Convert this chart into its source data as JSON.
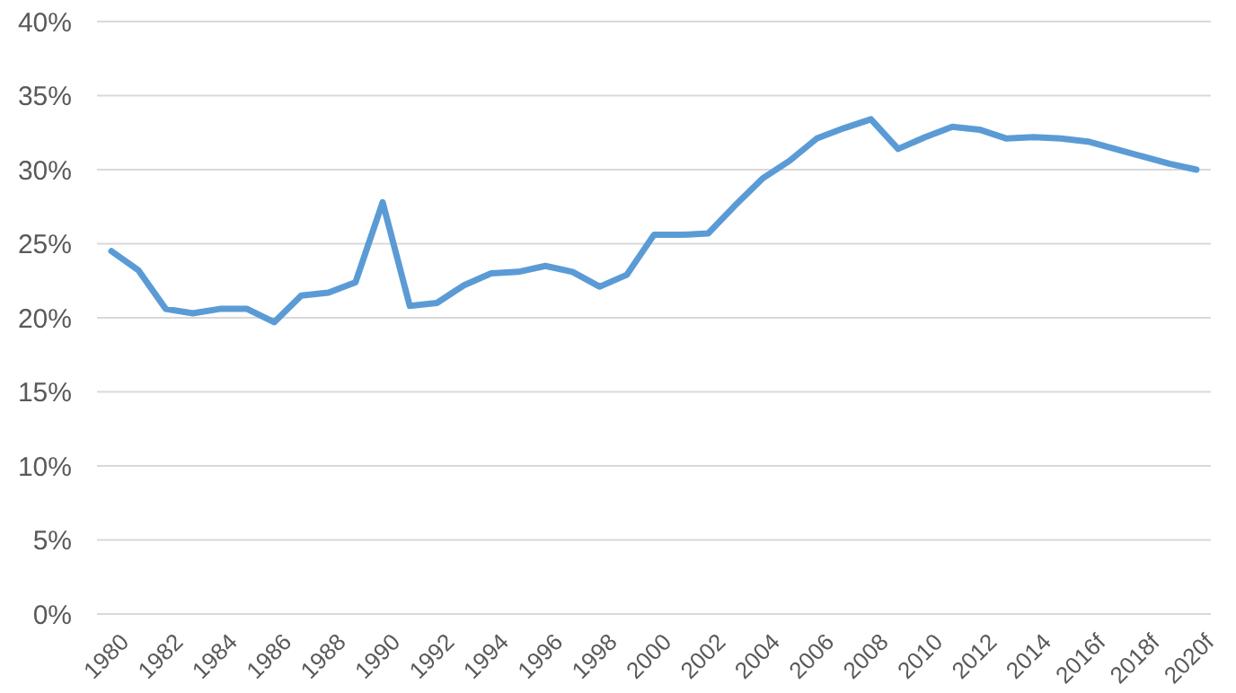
{
  "chart_data": {
    "type": "line",
    "categories": [
      "1980",
      null,
      "1982",
      null,
      "1984",
      null,
      "1986",
      null,
      "1988",
      null,
      "1990",
      null,
      "1992",
      null,
      "1994",
      null,
      "1996",
      null,
      "1998",
      null,
      "2000",
      null,
      "2002",
      null,
      "2004",
      null,
      "2006",
      null,
      "2008",
      null,
      "2010",
      null,
      "2012",
      null,
      "2014",
      null,
      "2016f",
      null,
      "2018f",
      null,
      "2020f"
    ],
    "series": [
      {
        "color": "#5b9bd5",
        "values": [
          24.5,
          23.2,
          20.6,
          20.3,
          20.6,
          20.6,
          19.7,
          21.5,
          21.7,
          22.4,
          27.8,
          20.8,
          21.0,
          22.2,
          23.0,
          23.1,
          23.5,
          23.1,
          22.1,
          22.9,
          25.6,
          25.6,
          25.7,
          27.6,
          29.4,
          30.6,
          32.1,
          32.8,
          33.4,
          31.4,
          32.2,
          32.9,
          32.7,
          32.1,
          32.2,
          32.1,
          31.9,
          31.4,
          30.9,
          30.4,
          30.0
        ]
      }
    ],
    "ylim": [
      0,
      40
    ],
    "yticks": [
      {
        "value": 0,
        "label": "0%"
      },
      {
        "value": 5,
        "label": "5%"
      },
      {
        "value": 10,
        "label": "10%"
      },
      {
        "value": 15,
        "label": "15%"
      },
      {
        "value": 20,
        "label": "20%"
      },
      {
        "value": 25,
        "label": "25%"
      },
      {
        "value": 30,
        "label": "30%"
      },
      {
        "value": 35,
        "label": "35%"
      },
      {
        "value": 40,
        "label": "40%"
      }
    ],
    "grid": "y",
    "marker": "none",
    "line_style": "solid"
  }
}
